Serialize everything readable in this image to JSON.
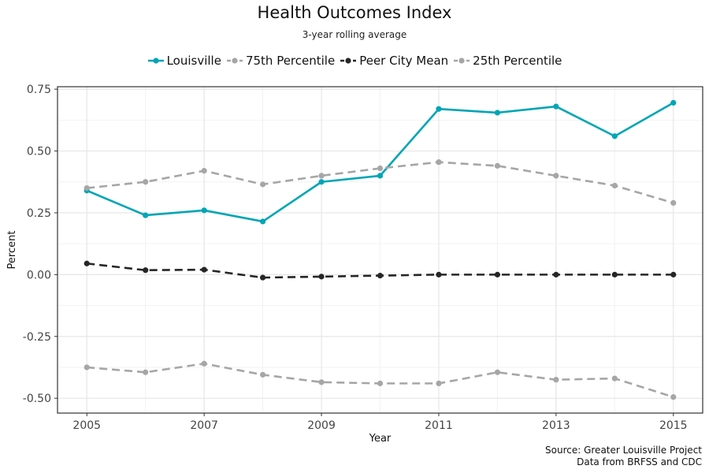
{
  "chart_data": {
    "type": "line",
    "title": "Health Outcomes Index",
    "subtitle": "3-year rolling average",
    "xlabel": "Year",
    "ylabel": "Percent",
    "x": [
      2005,
      2006,
      2007,
      2008,
      2009,
      2010,
      2011,
      2012,
      2013,
      2014,
      2015
    ],
    "xlim": [
      2004.5,
      2015.5
    ],
    "ylim": [
      -0.56,
      0.76
    ],
    "x_ticks": [
      "2005",
      "2007",
      "2009",
      "2011",
      "2013",
      "2015"
    ],
    "y_ticks": [
      "0.75",
      "0.50",
      "0.25",
      "0.00",
      "-0.25",
      "-0.50"
    ],
    "grid": true,
    "legend_position": "top",
    "series": [
      {
        "name": "Louisville",
        "color": "#00a5b5",
        "dash": "solid",
        "values": [
          0.34,
          0.24,
          0.26,
          0.215,
          0.375,
          0.4,
          0.67,
          0.655,
          0.68,
          0.56,
          0.695
        ]
      },
      {
        "name": "75th Percentile",
        "color": "#a6a6a6",
        "dash": "dashed",
        "values": [
          0.35,
          0.375,
          0.42,
          0.365,
          0.4,
          0.43,
          0.455,
          0.44,
          0.4,
          0.36,
          0.29
        ]
      },
      {
        "name": "Peer City Mean",
        "color": "#262626",
        "dash": "dashed",
        "values": [
          0.045,
          0.018,
          0.02,
          -0.012,
          -0.008,
          -0.004,
          0.0,
          0.0,
          0.0,
          0.0,
          0.0
        ]
      },
      {
        "name": "25th Percentile",
        "color": "#a6a6a6",
        "dash": "dashed",
        "values": [
          -0.375,
          -0.395,
          -0.36,
          -0.405,
          -0.435,
          -0.44,
          -0.44,
          -0.395,
          -0.425,
          -0.42,
          -0.495
        ]
      }
    ]
  },
  "caption": {
    "line1": "Source: Greater Louisville Project",
    "line2": "Data from BRFSS and CDC"
  }
}
